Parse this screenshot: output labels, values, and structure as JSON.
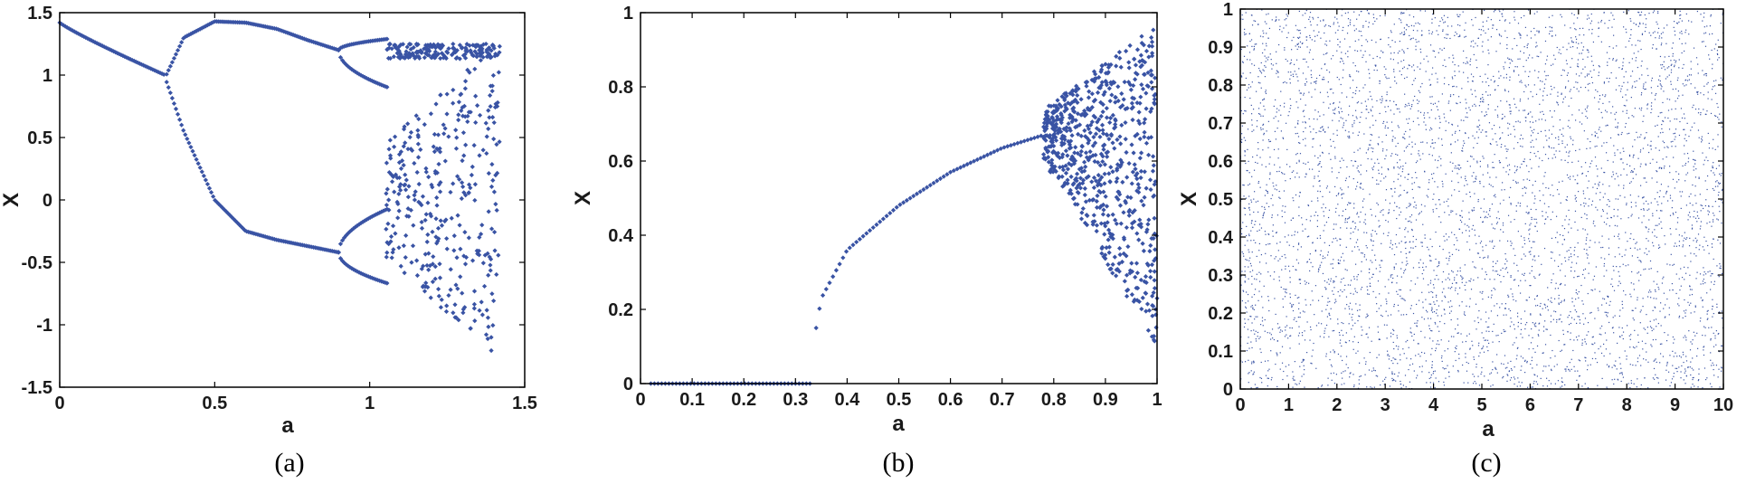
{
  "colors": {
    "marker": "#3953a4",
    "axis": "#000000",
    "text": "#1a1a1a"
  },
  "chart_data": [
    {
      "id": "a",
      "type": "scatter",
      "caption": "(a)",
      "xlabel": "a",
      "ylabel": "X",
      "xlim": [
        0,
        1.5
      ],
      "ylim": [
        -1.5,
        1.5
      ],
      "xticks": [
        0,
        0.5,
        1,
        1.5
      ],
      "xtick_labels": [
        "0",
        "0.5",
        "1",
        "1.5"
      ],
      "yticks": [
        -1.5,
        -1,
        -0.5,
        0,
        0.5,
        1,
        1.5
      ],
      "ytick_labels": [
        "-1.5",
        "-1",
        "-0.5",
        "0",
        "0.5",
        "1",
        "1.5"
      ],
      "grid": false,
      "marker": "diamond",
      "description_series": {
        "period1": {
          "x_range": [
            0,
            0.34
          ],
          "y_start": 1.42,
          "y_end": 1.0
        },
        "upper_branch": {
          "x_range": [
            0.34,
            0.9
          ],
          "y_at_x": [
            [
              0.34,
              0.98
            ],
            [
              0.4,
              1.3
            ],
            [
              0.5,
              1.43
            ],
            [
              0.6,
              1.42
            ],
            [
              0.7,
              1.37
            ],
            [
              0.8,
              1.28
            ],
            [
              0.9,
              1.2
            ]
          ]
        },
        "lower_branch": {
          "x_range": [
            0.34,
            0.9
          ],
          "y_at_x": [
            [
              0.34,
              0.98
            ],
            [
              0.4,
              0.55
            ],
            [
              0.5,
              0.0
            ],
            [
              0.6,
              -0.25
            ],
            [
              0.7,
              -0.32
            ],
            [
              0.8,
              -0.37
            ],
            [
              0.9,
              -0.42
            ]
          ]
        },
        "chaotic_region": {
          "x_range": [
            1.05,
            1.42
          ],
          "y_range": [
            -1.3,
            1.3
          ]
        }
      }
    },
    {
      "id": "b",
      "type": "scatter",
      "caption": "(b)",
      "xlabel": "a",
      "ylabel": "X",
      "xlim": [
        0,
        1
      ],
      "ylim": [
        0,
        1
      ],
      "xticks": [
        0,
        0.1,
        0.2,
        0.3,
        0.4,
        0.5,
        0.6,
        0.7,
        0.8,
        0.9,
        1
      ],
      "xtick_labels": [
        "0",
        "0.1",
        "0.2",
        "0.3",
        "0.4",
        "0.5",
        "0.6",
        "0.7",
        "0.8",
        "0.9",
        "1"
      ],
      "yticks": [
        0,
        0.2,
        0.4,
        0.6,
        0.8,
        1
      ],
      "ytick_labels": [
        "0",
        "0.2",
        "0.4",
        "0.6",
        "0.8",
        "1"
      ],
      "grid": false,
      "marker": "diamond",
      "description_series": {
        "zero_segment": {
          "x_range": [
            0.02,
            0.33
          ],
          "y": 0
        },
        "curve": {
          "y_at_x": [
            [
              0.34,
              0.15
            ],
            [
              0.35,
              0.23
            ],
            [
              0.4,
              0.36
            ],
            [
              0.5,
              0.48
            ],
            [
              0.6,
              0.57
            ],
            [
              0.7,
              0.635
            ],
            [
              0.78,
              0.67
            ]
          ]
        },
        "chaotic_region": {
          "x_range": [
            0.78,
            1.0
          ],
          "y_range": [
            0.1,
            0.97
          ]
        }
      }
    },
    {
      "id": "c",
      "type": "scatter",
      "caption": "(c)",
      "xlabel": "a",
      "ylabel": "X",
      "xlim": [
        0,
        10
      ],
      "ylim": [
        0,
        1
      ],
      "xticks": [
        0,
        1,
        2,
        3,
        4,
        5,
        6,
        7,
        8,
        9,
        10
      ],
      "xtick_labels": [
        "0",
        "1",
        "2",
        "3",
        "4",
        "5",
        "6",
        "7",
        "8",
        "9",
        "10"
      ],
      "yticks": [
        0,
        0.1,
        0.2,
        0.3,
        0.4,
        0.5,
        0.6,
        0.7,
        0.8,
        0.9,
        1
      ],
      "ytick_labels": [
        "0",
        "0.1",
        "0.2",
        "0.3",
        "0.4",
        "0.5",
        "0.6",
        "0.7",
        "0.8",
        "0.9",
        "1"
      ],
      "grid": false,
      "marker": "dot",
      "description_series": {
        "uniform_region": {
          "x_range": [
            0,
            10
          ],
          "y_range": [
            0,
            1
          ]
        }
      }
    }
  ]
}
